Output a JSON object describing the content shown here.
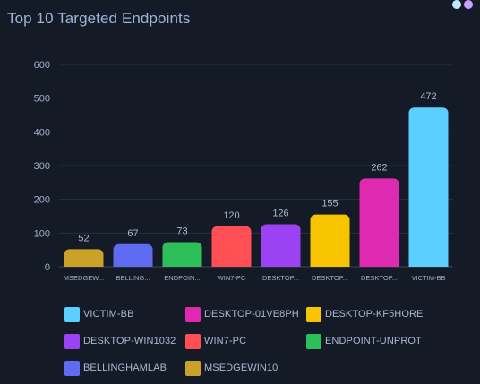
{
  "widget": {
    "title": "Top 10 Targeted Endpoints",
    "icons": [
      {
        "name": "info-icon",
        "color": "#bfe8ff"
      },
      {
        "name": "expand-icon",
        "color": "#c8a2ff"
      }
    ]
  },
  "chart_data": {
    "type": "bar",
    "title": "Top 10 Targeted Endpoints",
    "xlabel": "",
    "ylabel": "",
    "ylim": [
      0,
      600
    ],
    "yticks": [
      0,
      100,
      200,
      300,
      400,
      500,
      600
    ],
    "grid": true,
    "categories": [
      "MSEDGEW...",
      "BELLING...",
      "ENDPOIN...",
      "WIN7-PC",
      "DESKTOP...",
      "DESKTOP...",
      "DESKTOP...",
      "VICTIM-BB"
    ],
    "values": [
      52,
      67,
      73,
      120,
      126,
      155,
      262,
      472
    ],
    "colors": [
      "#c9a227",
      "#5f6cf2",
      "#2cbf5a",
      "#ff4f55",
      "#9b43f2",
      "#f7c400",
      "#dd2ab0",
      "#5bcfff"
    ],
    "legend_position": "bottom",
    "legend": [
      {
        "label": "VICTIM-BB",
        "color": "#5bcfff"
      },
      {
        "label": "DESKTOP-01VE8PH",
        "color": "#dd2ab0"
      },
      {
        "label": "DESKTOP-KF5HORE",
        "color": "#f7c400"
      },
      {
        "label": "DESKTOP-WIN1032",
        "color": "#9b43f2"
      },
      {
        "label": "WIN7-PC",
        "color": "#ff4f55"
      },
      {
        "label": "ENDPOINT-UNPROT",
        "color": "#2cbf5a"
      },
      {
        "label": "BELLINGHAMLAB",
        "color": "#5f6cf2"
      },
      {
        "label": "MSEDGEWIN10",
        "color": "#c9a227"
      }
    ]
  }
}
